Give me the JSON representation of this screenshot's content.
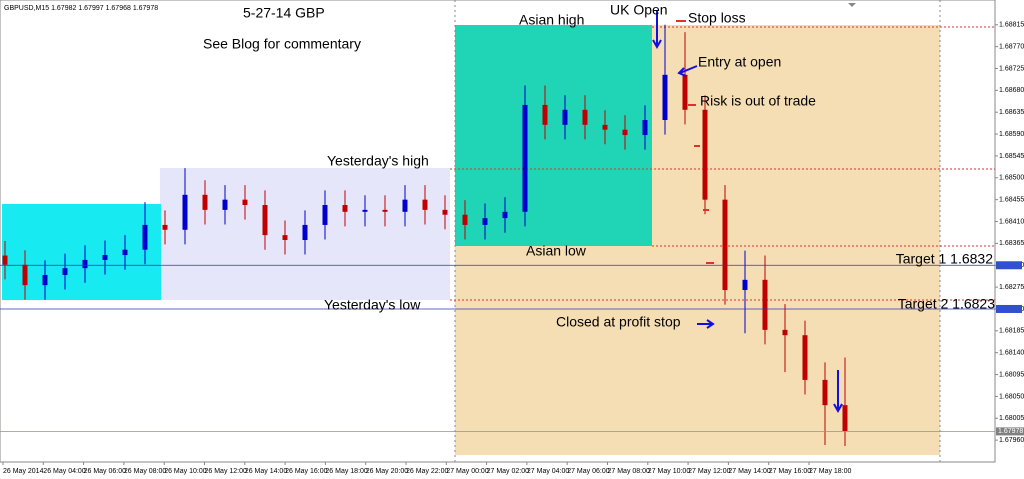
{
  "chart_data": {
    "type": "candlestick",
    "header": "GBPUSD,M15  1.67982 1.67997 1.67968 1.67978",
    "categories": [
      "26 May 2014",
      "26 May 04:00",
      "26 May 06:00",
      "26 May 08:00",
      "26 May 10:00",
      "26 May 12:00",
      "26 May 14:00",
      "26 May 16:00",
      "26 May 18:00",
      "26 May 20:00",
      "26 May 22:00",
      "27 May 00:00",
      "27 May 02:00",
      "27 May 04:00",
      "27 May 06:00",
      "27 May 08:00",
      "27 May 10:00",
      "27 May 12:00",
      "27 May 14:00",
      "27 May 16:00",
      "27 May 18:00"
    ],
    "open": [
      1.6834,
      1.68321,
      1.68279,
      1.683,
      1.68314,
      1.68331,
      1.68341,
      1.68352,
      1.68403,
      1.68393,
      1.68465,
      1.68434,
      1.68455,
      1.68444,
      1.68382,
      1.68372,
      1.68403,
      1.68444,
      1.6843,
      1.68434,
      1.6843,
      1.68455,
      1.68434,
      1.68424,
      1.68403,
      1.68417,
      1.6843,
      1.6865,
      1.68609,
      1.6864,
      1.68609,
      1.68599,
      1.68588,
      1.68619,
      1.68712,
      1.6864,
      1.68455,
      1.68269,
      1.6829,
      1.68187,
      1.68176,
      1.68084,
      1.68032
    ],
    "high": [
      1.6837,
      1.68351,
      1.6833,
      1.68344,
      1.68361,
      1.68371,
      1.68382,
      1.6845,
      1.68433,
      1.6852,
      1.68495,
      1.68485,
      1.68485,
      1.68474,
      1.68412,
      1.68433,
      1.68474,
      1.68474,
      1.68464,
      1.68464,
      1.68485,
      1.68485,
      1.68464,
      1.68454,
      1.68447,
      1.6846,
      1.6869,
      1.6869,
      1.6867,
      1.6867,
      1.68639,
      1.68629,
      1.68649,
      1.68815,
      1.688,
      1.6867,
      1.68485,
      1.6835,
      1.6834,
      1.6824,
      1.68206,
      1.6812,
      1.6813
    ],
    "low": [
      1.68291,
      1.68249,
      1.68249,
      1.6827,
      1.68284,
      1.68301,
      1.68311,
      1.68322,
      1.68363,
      1.68363,
      1.68404,
      1.68404,
      1.68414,
      1.68352,
      1.68342,
      1.68342,
      1.68373,
      1.684,
      1.684,
      1.684,
      1.684,
      1.68404,
      1.68394,
      1.68373,
      1.68373,
      1.68387,
      1.684,
      1.68579,
      1.68579,
      1.68579,
      1.68569,
      1.68558,
      1.68558,
      1.68589,
      1.6861,
      1.68425,
      1.68239,
      1.6818,
      1.68157,
      1.681,
      1.68054,
      1.6795,
      1.67948
    ],
    "close": [
      1.68321,
      1.68279,
      1.683,
      1.68314,
      1.68331,
      1.68341,
      1.68352,
      1.68403,
      1.68393,
      1.68465,
      1.68434,
      1.68455,
      1.68444,
      1.68382,
      1.68372,
      1.68403,
      1.68444,
      1.6843,
      1.68434,
      1.6843,
      1.68455,
      1.68434,
      1.68424,
      1.68403,
      1.68417,
      1.6843,
      1.6865,
      1.68609,
      1.6864,
      1.68609,
      1.68599,
      1.68588,
      1.68619,
      1.68712,
      1.6864,
      1.68455,
      1.68269,
      1.6829,
      1.68187,
      1.68176,
      1.68084,
      1.68032,
      1.67978
    ],
    "up_color": "#0000cd",
    "down_color": "#c00000",
    "ylim": [
      1.67915,
      1.68866
    ],
    "yticks": [
      1.68815,
      {
        "value": 1.6877,
        "label": "1.68770"
      },
      1.68725,
      {
        "value": 1.6868,
        "label": "1.68680"
      },
      1.68635,
      {
        "value": 1.6859,
        "label": "1.68590"
      },
      1.68545,
      {
        "value": 1.685,
        "label": "1.68500"
      },
      1.68455,
      {
        "value": 1.6841,
        "label": "1.68410"
      },
      1.68365,
      {
        "value": 1.6832,
        "label": "1.68320"
      },
      1.68275,
      {
        "value": 1.6823,
        "label": "1.68230"
      },
      1.68185,
      {
        "value": 1.6814,
        "label": "1.68140"
      },
      1.68095,
      {
        "value": 1.6805,
        "label": "1.68050"
      },
      1.68005,
      {
        "value": 1.6796,
        "label": "1.67960"
      }
    ],
    "target_lines": [
      1.6832,
      1.6823
    ],
    "current_price": 1.67978,
    "annotations": [
      "5-27-14  GBP",
      "See Blog for commentary",
      "Asian high",
      "UK Open",
      "Stop loss",
      "Entry at open",
      "Risk is out of trade",
      "Yesterday's high",
      "Asian low",
      "Target 1  1.6832",
      "Yesterday's low",
      "Target 2  1.6823",
      "Closed at profit stop"
    ]
  }
}
